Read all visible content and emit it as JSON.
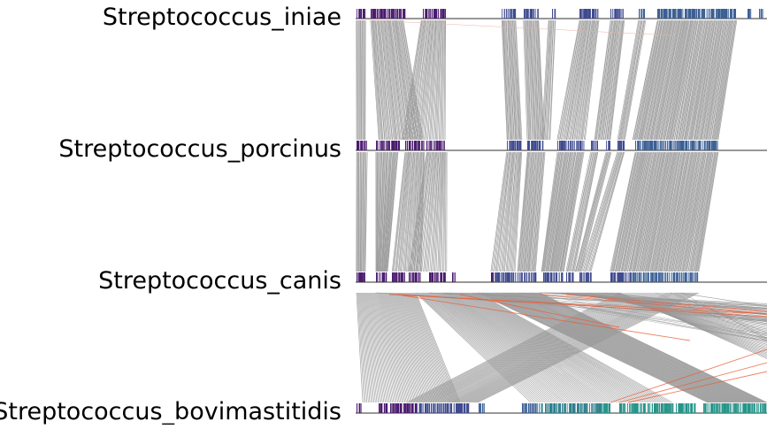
{
  "genomes": [
    {
      "name": "Streptococcus_iniae"
    },
    {
      "name": "Streptococcus_porcinus"
    },
    {
      "name": "Streptococcus_canis"
    },
    {
      "name": "Streptococcus_bovimastitidis"
    }
  ],
  "colors": {
    "genome_line": "#777777",
    "synteny_forward": "#999999",
    "synteny_inverted": "#e8603c",
    "gene_palette": [
      "#4a1a6e",
      "#3f4a8f",
      "#3b5f94",
      "#2e7e8c",
      "#27948a"
    ]
  },
  "comparisons": [
    {
      "from": "Streptococcus_iniae",
      "to": "Streptococcus_porcinus",
      "orientation": "mostly-forward"
    },
    {
      "from": "Streptococcus_porcinus",
      "to": "Streptococcus_canis",
      "orientation": "mostly-forward"
    },
    {
      "from": "Streptococcus_canis",
      "to": "Streptococcus_bovimastitidis",
      "orientation": "rearranged",
      "has_inversions": true
    }
  ]
}
